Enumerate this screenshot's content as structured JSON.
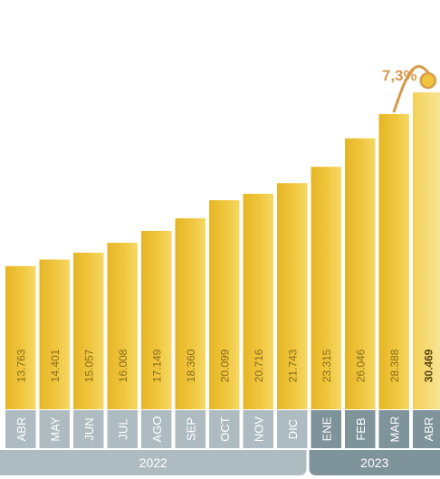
{
  "chart_data": {
    "type": "bar",
    "categories": [
      "ABR",
      "MAY",
      "JUN",
      "JUL",
      "AGO",
      "SEP",
      "OCT",
      "NOV",
      "DIC",
      "ENE",
      "FEB",
      "MAR",
      "ABR"
    ],
    "values": [
      13763,
      14401,
      15057,
      16008,
      17149,
      18360,
      20099,
      20716,
      21743,
      23315,
      26046,
      28388,
      30469
    ],
    "value_labels": [
      "13.763",
      "14.401",
      "15.057",
      "16.008",
      "17.149",
      "18.360",
      "20.099",
      "20.716",
      "21.743",
      "23.315",
      "26.046",
      "28.388",
      "30.469"
    ],
    "year_groups": [
      {
        "label": "2022",
        "count": 9
      },
      {
        "label": "2023",
        "count": 4
      }
    ],
    "annotation": {
      "text": "7,3%",
      "from_index": 11,
      "to_index": 12
    },
    "grid": false,
    "title": "",
    "xlabel": "",
    "ylabel": "",
    "colors": {
      "bar": "#f0c43c",
      "bar_highlight": "#f5d96a",
      "value_text": "#8a6d1a",
      "axis_2022": "#aebcc2",
      "axis_2023": "#7f939b",
      "annotation": "#d79a4a",
      "annotation_dot": "#f0c43c"
    }
  }
}
